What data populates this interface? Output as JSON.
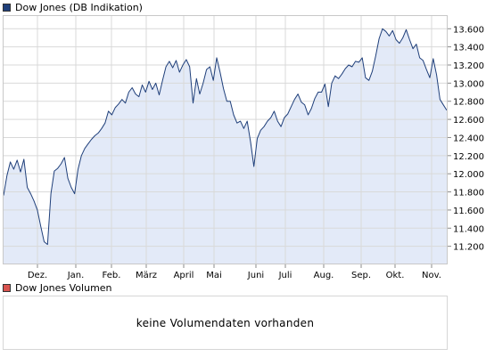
{
  "legend": {
    "price_label": "Dow Jones (DB Indikation)",
    "price_color": "#1f3f7a",
    "volume_label": "Dow Jones Volumen",
    "volume_color": "#d9534f"
  },
  "volume_panel": {
    "message": "keine Volumendaten vorhanden"
  },
  "chart_data": {
    "type": "area",
    "title": "",
    "xlabel": "",
    "ylabel": "",
    "grid": true,
    "line_color": "#1f3f7a",
    "fill_color": "#e3eaf8",
    "ylim": [
      11000,
      13750
    ],
    "x_ticks": [
      "Dez.",
      "Jan.",
      "Feb.",
      "März",
      "April",
      "Mai",
      "Juni",
      "Juli",
      "Aug.",
      "Sep.",
      "Okt.",
      "Nov."
    ],
    "y_ticks": [
      11200,
      11400,
      11600,
      11800,
      12000,
      12200,
      12400,
      12600,
      12800,
      13000,
      13200,
      13400,
      13600
    ],
    "y_tick_labels": [
      "11.200",
      "11.400",
      "11.600",
      "11.800",
      "12.000",
      "12.200",
      "12.400",
      "12.600",
      "12.800",
      "13.000",
      "13.200",
      "13.400",
      "13.600"
    ],
    "series": [
      {
        "values": [
          11760,
          11980,
          12130,
          12050,
          12150,
          12020,
          12160,
          11850,
          11780,
          11700,
          11600,
          11420,
          11250,
          11220,
          11780,
          12030,
          12060,
          12110,
          12180,
          11950,
          11850,
          11780,
          12050,
          12200,
          12280,
          12330,
          12380,
          12420,
          12450,
          12500,
          12560,
          12690,
          12650,
          12730,
          12770,
          12820,
          12780,
          12900,
          12950,
          12880,
          12850,
          12980,
          12900,
          13020,
          12930,
          13000,
          12870,
          13030,
          13180,
          13240,
          13170,
          13250,
          13120,
          13200,
          13260,
          13180,
          12780,
          13050,
          12880,
          13000,
          13150,
          13180,
          13030,
          13280,
          13120,
          12940,
          12800,
          12800,
          12650,
          12560,
          12580,
          12500,
          12580,
          12350,
          12080,
          12390,
          12480,
          12520,
          12580,
          12620,
          12690,
          12580,
          12520,
          12620,
          12660,
          12740,
          12820,
          12880,
          12790,
          12760,
          12650,
          12720,
          12830,
          12900,
          12900,
          12990,
          12740,
          13000,
          13080,
          13050,
          13100,
          13160,
          13200,
          13180,
          13240,
          13230,
          13280,
          13060,
          13030,
          13130,
          13300,
          13490,
          13600,
          13570,
          13520,
          13580,
          13480,
          13440,
          13500,
          13590,
          13480,
          13380,
          13430,
          13280,
          13250,
          13150,
          13060,
          13270,
          13090,
          12820,
          12760,
          12700
        ]
      }
    ]
  }
}
